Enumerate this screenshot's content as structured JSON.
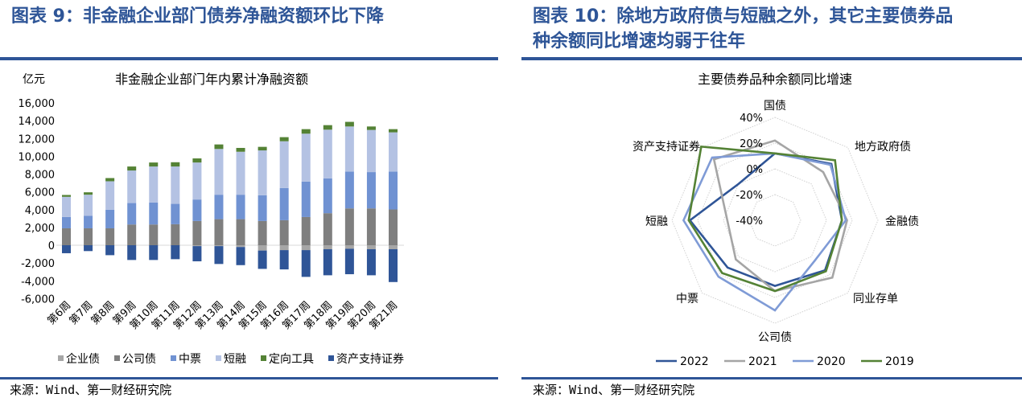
{
  "left": {
    "title": "图表 9：非金融企业部门债券净融资额环比下降",
    "source": "来源：Wind、第一财经研究院"
  },
  "right": {
    "title_line1": "图表 10：除地方政府债与短融之外，其它主要债券品",
    "title_line2": "种余额同比增速均弱于往年",
    "source": "来源：Wind、第一财经研究院"
  },
  "chart_data": [
    {
      "type": "bar",
      "stacked": true,
      "title": "非金融企业部门年内累计净融资额",
      "ylabel": "亿元",
      "xlabel": "",
      "ylim": [
        -6000,
        16000
      ],
      "yticks": [
        -6000,
        -4000,
        -2000,
        0,
        2000,
        4000,
        6000,
        8000,
        10000,
        12000,
        14000,
        16000
      ],
      "ytick_labels": [
        "-6,000",
        "-4,000",
        "-2,000",
        "0",
        "2,000",
        "4,000",
        "6,000",
        "8,000",
        "10,000",
        "12,000",
        "14,000",
        "16,000"
      ],
      "categories": [
        "第6周",
        "第7周",
        "第8周",
        "第9周",
        "第10周",
        "第11周",
        "第12周",
        "第13周",
        "第14周",
        "第15周",
        "第16周",
        "第17周",
        "第18周",
        "第19周",
        "第20周",
        "第21周"
      ],
      "legend_position": "bottom",
      "series": [
        {
          "name": "企业债",
          "color": "#a6a6a6",
          "values": [
            0,
            0,
            0,
            0,
            0,
            0,
            -100,
            -100,
            -200,
            -600,
            -550,
            -550,
            -450,
            -400,
            -450,
            -450
          ]
        },
        {
          "name": "公司债",
          "color": "#7f7f7f",
          "values": [
            1900,
            1900,
            1900,
            2330,
            2330,
            2360,
            2720,
            2930,
            2930,
            2720,
            2810,
            3170,
            3600,
            4140,
            4140,
            4020
          ]
        },
        {
          "name": "中票",
          "color": "#7092d2",
          "values": [
            1270,
            1420,
            2090,
            2410,
            2470,
            2290,
            2420,
            2750,
            2750,
            2900,
            3620,
            3990,
            3920,
            4140,
            4080,
            4260
          ]
        },
        {
          "name": "短融",
          "color": "#b4c2e3",
          "values": [
            2270,
            2360,
            3200,
            3660,
            4050,
            4200,
            4160,
            5140,
            4830,
            5040,
            5260,
            5380,
            5470,
            5070,
            4740,
            4410
          ]
        },
        {
          "name": "定向工具",
          "color": "#548235",
          "values": [
            210,
            270,
            360,
            450,
            450,
            480,
            460,
            510,
            430,
            400,
            460,
            510,
            510,
            520,
            390,
            360
          ]
        },
        {
          "name": "资产支持证券",
          "color": "#2f5597",
          "values": [
            -900,
            -660,
            -1120,
            -1660,
            -1660,
            -1570,
            -1710,
            -2010,
            -2040,
            -2060,
            -2170,
            -3010,
            -2930,
            -2860,
            -2930,
            -3690
          ]
        }
      ]
    },
    {
      "type": "radar",
      "title": "主要债券品种余额同比增速",
      "axes": [
        "国债",
        "地方政府债",
        "金融债",
        "同业存单",
        "公司债",
        "中票",
        "短融",
        "资产支持证券"
      ],
      "rlim": [
        -40,
        40
      ],
      "ring_values": [
        -40,
        -20,
        0,
        20,
        40
      ],
      "ring_labels": [
        "-40%",
        "-20%",
        "0%",
        "20%",
        "40%"
      ],
      "legend_position": "bottom",
      "series": [
        {
          "name": "2022",
          "color": "#2f5597",
          "values": [
            12,
            22,
            12,
            15,
            11,
            12,
            26,
            0
          ]
        },
        {
          "name": "2021",
          "color": "#a5a5a5",
          "values": [
            22,
            13,
            16,
            23,
            15,
            3,
            -3,
            27
          ]
        },
        {
          "name": "2020",
          "color": "#7f9bd6",
          "values": [
            12,
            21,
            15,
            4,
            30,
            22,
            31,
            29
          ]
        },
        {
          "name": "2019",
          "color": "#548235",
          "values": [
            12,
            26,
            12,
            16,
            15,
            18,
            27,
            41
          ]
        }
      ]
    }
  ]
}
